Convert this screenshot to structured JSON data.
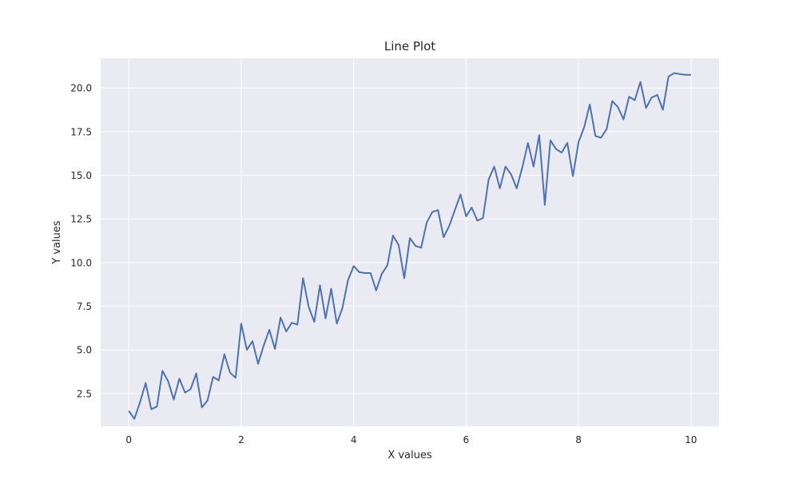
{
  "chart_data": {
    "type": "line",
    "title": "Line Plot",
    "xlabel": "X values",
    "ylabel": "Y values",
    "xlim": [
      -0.5,
      10.5
    ],
    "ylim": [
      0.62,
      21.7
    ],
    "x_ticks": [
      0,
      2,
      4,
      6,
      8,
      10
    ],
    "x_tick_labels": [
      "0",
      "2",
      "4",
      "6",
      "8",
      "10"
    ],
    "y_ticks": [
      2.5,
      5.0,
      7.5,
      10.0,
      12.5,
      15.0,
      17.5,
      20.0
    ],
    "y_tick_labels": [
      "2.5",
      "5.0",
      "7.5",
      "10.0",
      "12.5",
      "15.0",
      "17.5",
      "20.0"
    ],
    "grid": true,
    "colors": {
      "plot_background": "#eaeaf2",
      "grid": "#ffffff",
      "line": "#4c72b0"
    },
    "series": [
      {
        "x": [
          0,
          0.1,
          0.2,
          0.3,
          0.4,
          0.5,
          0.6,
          0.7,
          0.8,
          0.9,
          1.0,
          1.1,
          1.2,
          1.3,
          1.4,
          1.5,
          1.6,
          1.7,
          1.8,
          1.9,
          2.0,
          2.1,
          2.2,
          2.3,
          2.4,
          2.5,
          2.6,
          2.7,
          2.8,
          2.9,
          3.0,
          3.1,
          3.2,
          3.3,
          3.4,
          3.5,
          3.6,
          3.7,
          3.8,
          3.9,
          4.0,
          4.1,
          4.2,
          4.3,
          4.4,
          4.5,
          4.6,
          4.7,
          4.8,
          4.9,
          5.0,
          5.1,
          5.2,
          5.3,
          5.4,
          5.5,
          5.6,
          5.7,
          5.8,
          5.9,
          6.0,
          6.1,
          6.2,
          6.3,
          6.4,
          6.5,
          6.6,
          6.7,
          6.8,
          6.9,
          7.0,
          7.1,
          7.2,
          7.3,
          7.4,
          7.5,
          7.6,
          7.7,
          7.8,
          7.9,
          8.0,
          8.1,
          8.2,
          8.3,
          8.4,
          8.5,
          8.6,
          8.7,
          8.8,
          8.9,
          9.0,
          9.1,
          9.2,
          9.3,
          9.4,
          9.5,
          9.6,
          9.7,
          9.8,
          9.9,
          10.0
        ],
        "y": [
          1.5,
          1.05,
          2.0,
          3.1,
          1.6,
          1.75,
          3.8,
          3.2,
          2.15,
          3.35,
          2.55,
          2.75,
          3.65,
          1.7,
          2.1,
          3.45,
          3.25,
          4.75,
          3.7,
          3.4,
          6.5,
          5.0,
          5.5,
          4.2,
          5.25,
          6.15,
          5.05,
          6.85,
          6.05,
          6.55,
          6.45,
          9.1,
          7.45,
          6.6,
          8.7,
          6.8,
          8.5,
          6.5,
          7.4,
          9.0,
          9.8,
          9.45,
          9.4,
          9.4,
          8.4,
          9.35,
          9.85,
          11.55,
          11.0,
          9.1,
          11.4,
          10.95,
          10.85,
          12.3,
          12.9,
          13.0,
          11.45,
          12.1,
          13.0,
          13.9,
          12.65,
          13.15,
          12.4,
          12.55,
          14.75,
          15.5,
          14.25,
          15.5,
          15.05,
          14.25,
          15.45,
          16.85,
          15.5,
          17.3,
          13.3,
          17.0,
          16.5,
          16.3,
          16.85,
          14.95,
          16.9,
          17.75,
          19.05,
          17.25,
          17.15,
          17.65,
          19.25,
          18.9,
          18.2,
          19.5,
          19.3,
          20.35,
          18.85,
          19.45,
          19.6,
          18.75,
          20.65,
          20.85,
          20.8,
          20.75,
          20.75
        ]
      }
    ]
  }
}
